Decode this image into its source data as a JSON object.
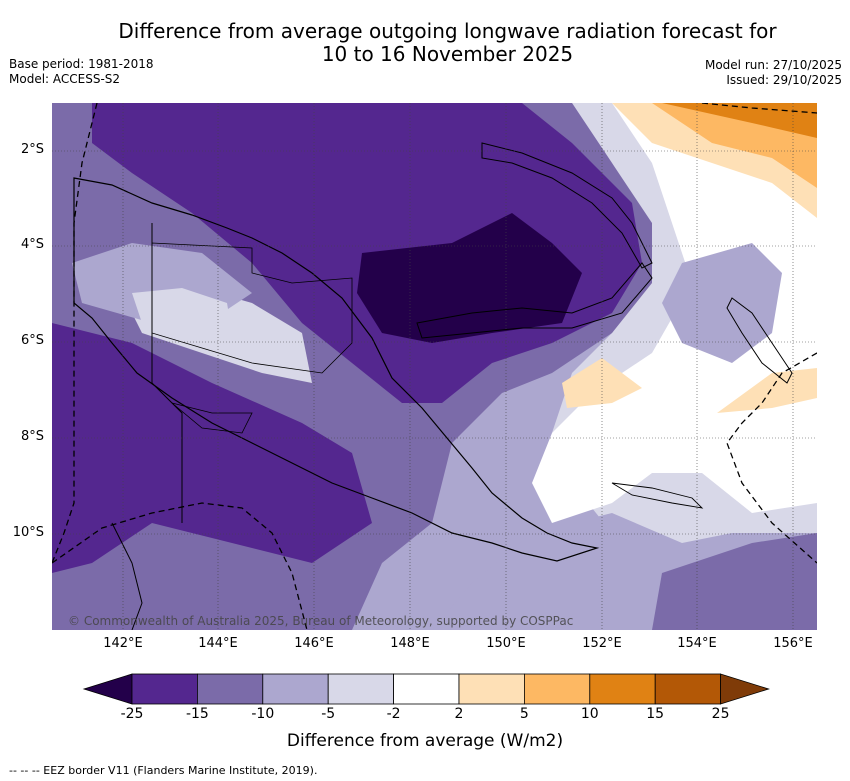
{
  "header": {
    "title_line1": "Difference from average outgoing longwave radiation forecast for",
    "title_line2": "10 to 16 November 2025",
    "base_period": "Base period: 1981-2018",
    "model": "Model: ACCESS-S2",
    "model_run": "Model run: 27/10/2025",
    "issued": "Issued: 29/10/2025"
  },
  "map": {
    "x_ticks": [
      "142°E",
      "144°E",
      "146°E",
      "148°E",
      "150°E",
      "152°E",
      "154°E",
      "156°E"
    ],
    "y_ticks": [
      "2°S",
      "4°S",
      "6°S",
      "8°S",
      "10°S"
    ],
    "copyright": "© Commonwealth of Australia 2025, Bureau of Meteorology, supported by COSPPac"
  },
  "colorbar": {
    "labels": [
      "-25",
      "-15",
      "-10",
      "-5",
      "-2",
      "2",
      "5",
      "10",
      "15",
      "25"
    ],
    "colors": [
      "#23004a",
      "#54278f",
      "#7b6ba9",
      "#aca7cf",
      "#d8d8e8",
      "#ffffff",
      "#fee0b6",
      "#fdb863",
      "#e08214",
      "#b35806",
      "#7f3b08"
    ],
    "title": "Difference from average (W/m2)"
  },
  "footer": {
    "eez_note": "--  --  -- EEZ border V11 (Flanders Marine Institute, 2019)."
  }
}
